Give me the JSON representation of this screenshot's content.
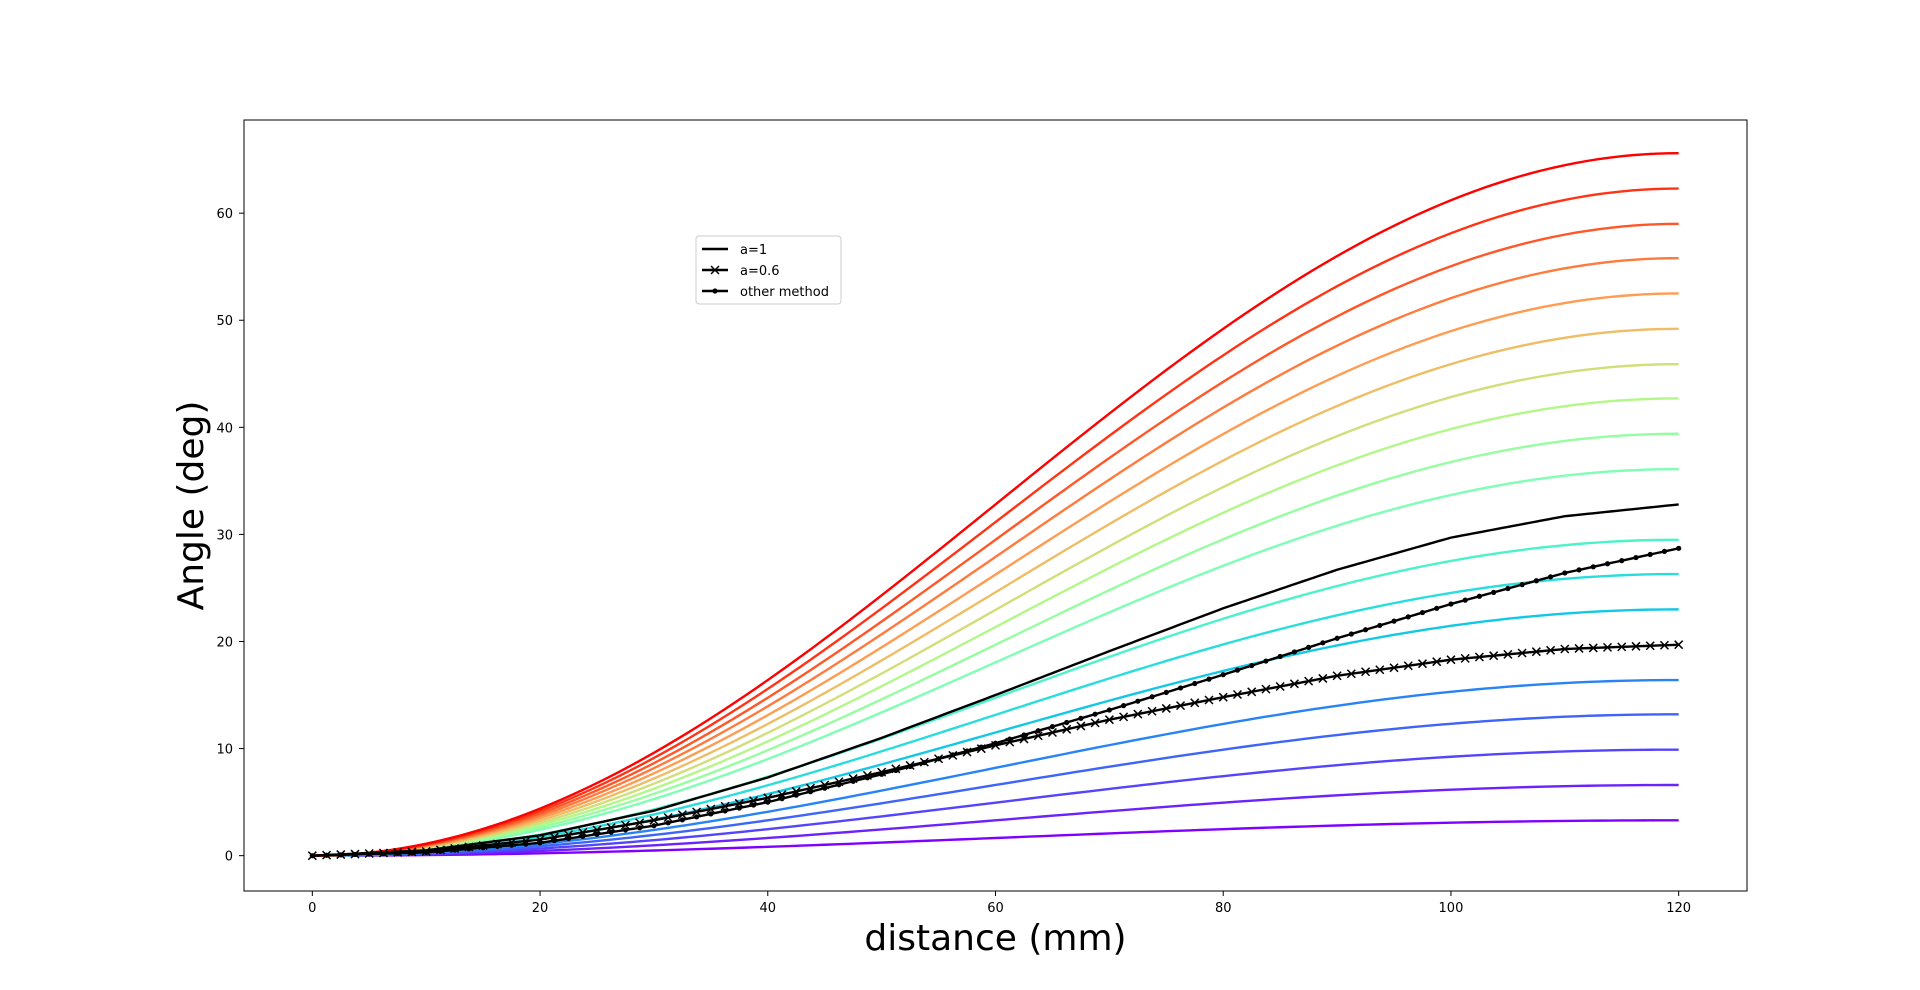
{
  "chart_data": {
    "type": "line",
    "title": "",
    "xlabel": "distance (mm)",
    "ylabel": "Angle (deg)",
    "xlim": [
      -6,
      126
    ],
    "ylim": [
      -3.3,
      68.7
    ],
    "xticks": [
      0,
      20,
      40,
      60,
      80,
      100,
      120
    ],
    "yticks": [
      0,
      10,
      20,
      30,
      40,
      50,
      60
    ],
    "grid": false,
    "legend_position": "upper-center-left",
    "curve_shape": "smooth S-curve rising from 0 at x=0 and flattening near x=120",
    "rainbow_series": {
      "colormap": "rainbow (purple to red)",
      "end_values": [
        3.3,
        6.6,
        9.9,
        13.2,
        16.4,
        23.0,
        26.3,
        29.5,
        36.1,
        39.4,
        42.7,
        45.9,
        49.2,
        52.5,
        55.8,
        59.0,
        62.3,
        65.6
      ],
      "colors": [
        "#8000ff",
        "#6a22fe",
        "#5444fd",
        "#3e64f9",
        "#2884f5",
        "#12c8e6",
        "#2adddd",
        "#4cf2c9",
        "#7ffeb5",
        "#96fea0",
        "#b4f789",
        "#d2de7a",
        "#eebd66",
        "#ff9c51",
        "#ff7a3c",
        "#ff5728",
        "#ff3415",
        "#ff0000"
      ]
    },
    "series": [
      {
        "name": "a=1",
        "marker": "none",
        "color": "#000000",
        "x": [
          0,
          10,
          20,
          30,
          40,
          50,
          60,
          70,
          80,
          90,
          100,
          110,
          120
        ],
        "y": [
          0,
          0.5,
          1.9,
          4.2,
          7.3,
          11.0,
          15.0,
          19.1,
          23.1,
          26.7,
          29.7,
          31.7,
          32.8
        ]
      },
      {
        "name": "a=0.6",
        "marker": "x",
        "color": "#000000",
        "x": [
          0,
          10,
          20,
          30,
          40,
          50,
          60,
          70,
          80,
          90,
          100,
          110,
          120
        ],
        "y": [
          0,
          0.4,
          1.5,
          3.3,
          5.4,
          7.8,
          10.3,
          12.7,
          14.8,
          16.8,
          18.3,
          19.3,
          19.7
        ]
      },
      {
        "name": "other method",
        "marker": "dot",
        "color": "#000000",
        "x": [
          0,
          10,
          20,
          30,
          40,
          50,
          60,
          70,
          80,
          90,
          100,
          110,
          120
        ],
        "y": [
          0,
          0.3,
          1.2,
          2.8,
          5.0,
          7.6,
          10.5,
          13.6,
          16.9,
          20.3,
          23.5,
          26.4,
          28.7
        ]
      }
    ]
  }
}
